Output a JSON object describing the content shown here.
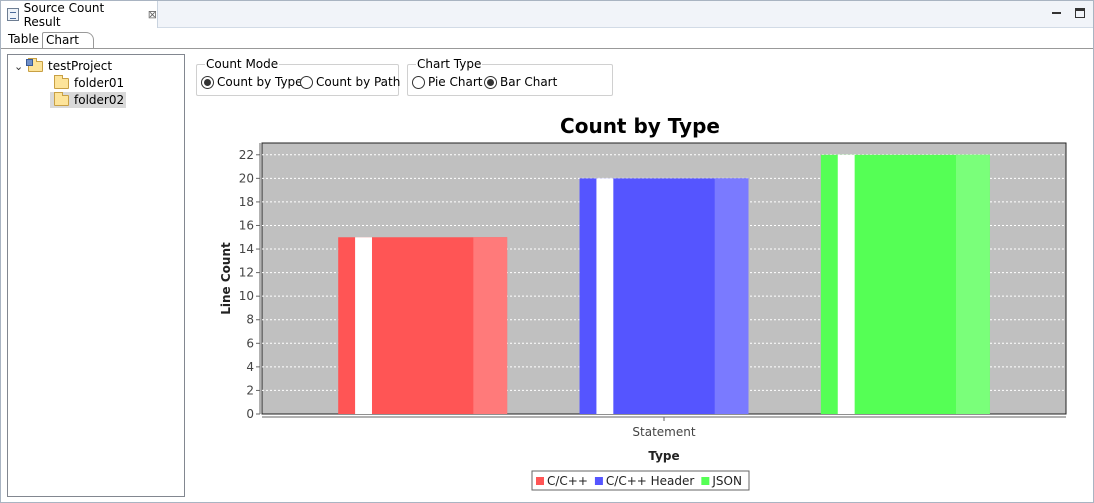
{
  "window": {
    "view_title": "Source Count Result",
    "close_glyph": "⊠",
    "buttons": [
      "minimize",
      "maximize"
    ]
  },
  "subtabs": [
    {
      "label": "Table",
      "active": false
    },
    {
      "label": "Chart",
      "active": true
    }
  ],
  "tree": {
    "expand_glyph": "⌄",
    "root": "testProject",
    "children": [
      "folder01",
      "folder02"
    ],
    "selected": "folder02"
  },
  "count_mode": {
    "label": "Count Mode",
    "options": [
      {
        "label": "Count by Type",
        "selected": true
      },
      {
        "label": "Count by Path",
        "selected": false
      }
    ]
  },
  "chart_type": {
    "label": "Chart Type",
    "options": [
      {
        "label": "Pie Chart",
        "selected": false
      },
      {
        "label": "Bar Chart",
        "selected": true
      }
    ]
  },
  "chart_data": {
    "type": "bar",
    "title": "Count by Type",
    "xlabel": "Type",
    "ylabel": "Line Count",
    "categories": [
      "Statement"
    ],
    "ylim": [
      0,
      23
    ],
    "yticks": [
      0,
      2,
      4,
      6,
      8,
      10,
      12,
      14,
      16,
      18,
      20,
      22
    ],
    "grid": true,
    "legend_position": "bottom",
    "plot_background": "#c0c0c0",
    "series": [
      {
        "name": "C/C++",
        "values": [
          15
        ],
        "color": "#ff5555"
      },
      {
        "name": "C/C++ Header",
        "values": [
          20
        ],
        "color": "#5555ff"
      },
      {
        "name": "JSON",
        "values": [
          22
        ],
        "color": "#55ff55"
      }
    ]
  }
}
